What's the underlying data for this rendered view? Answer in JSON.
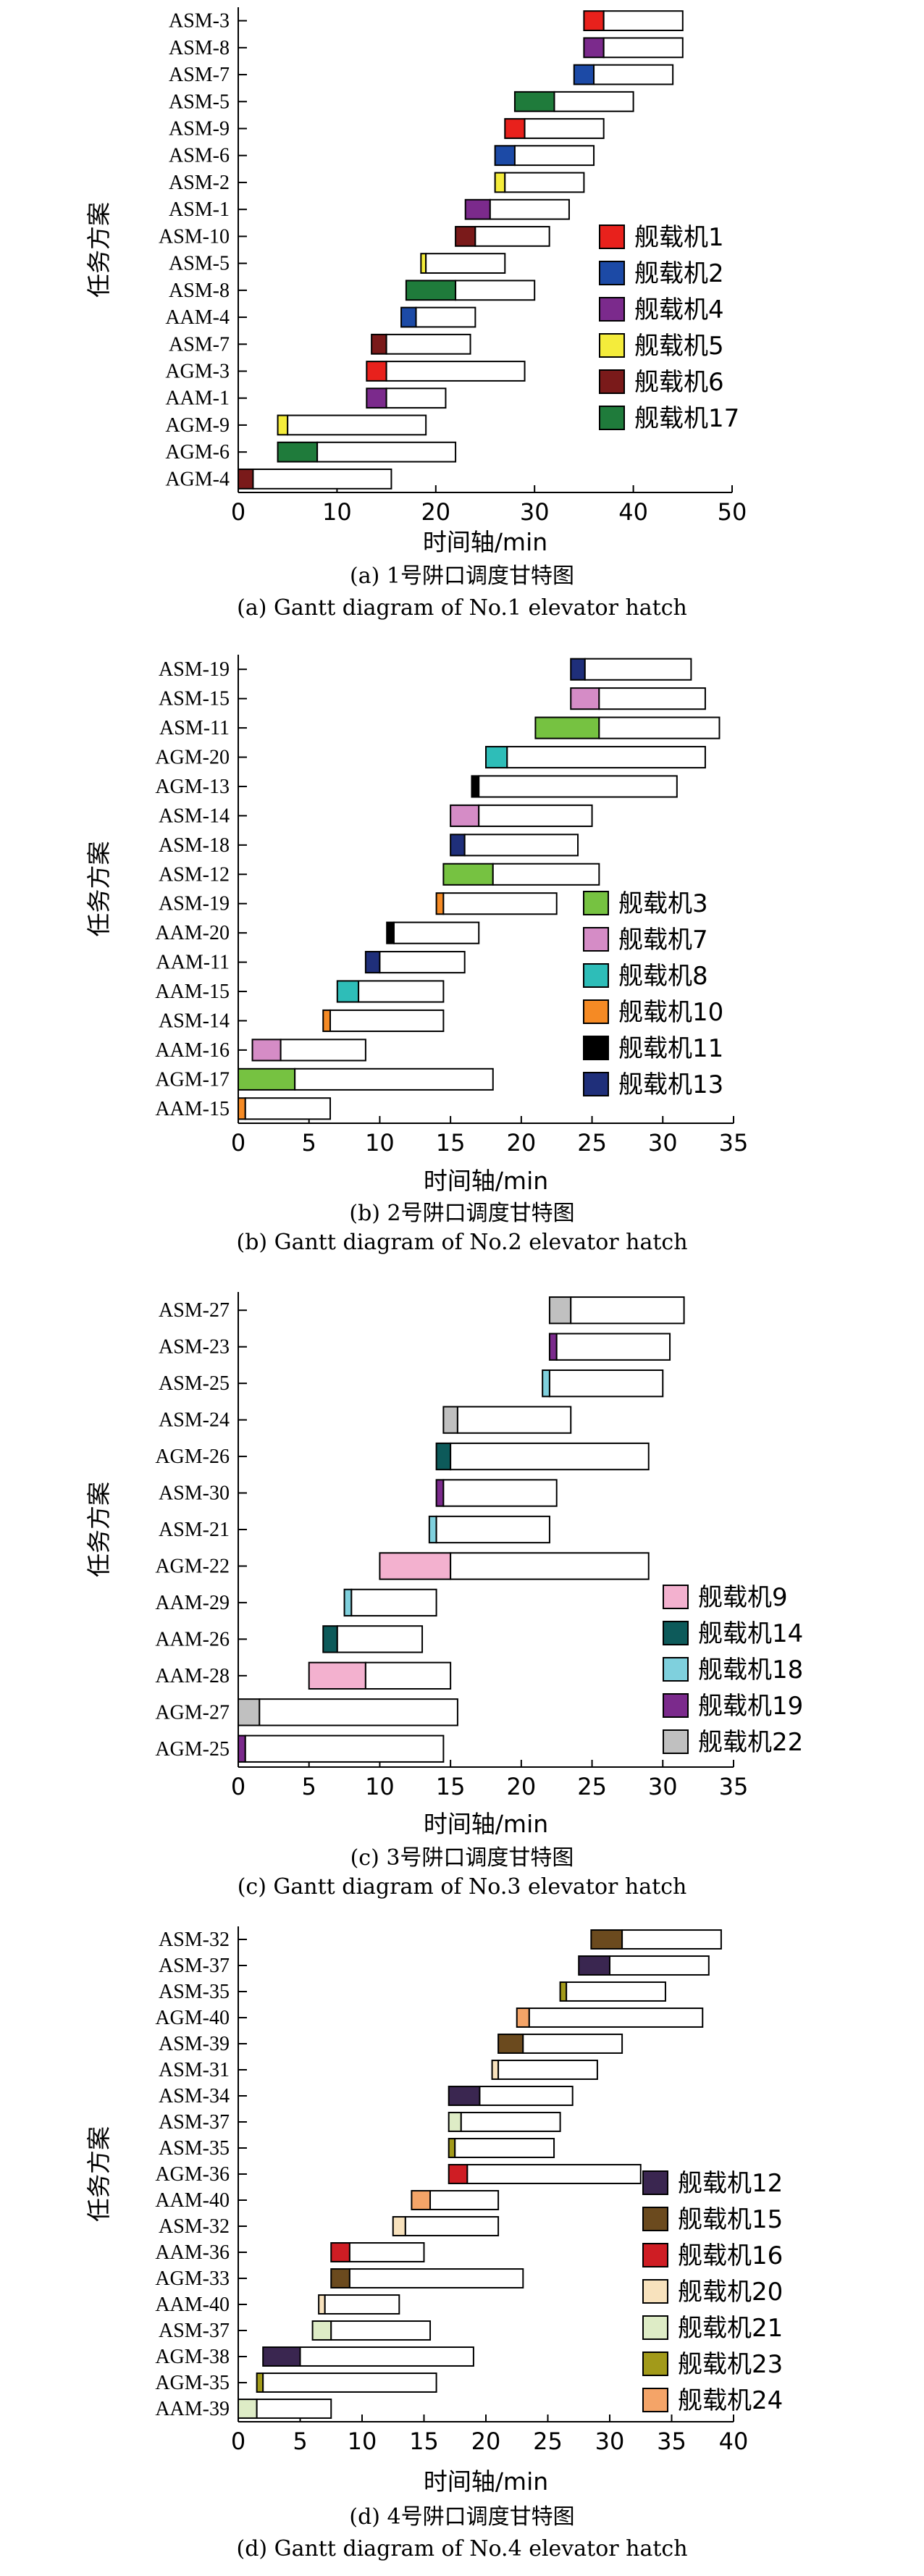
{
  "charts": [
    {
      "caption_cn": "(a) 1号阱口调度甘特图",
      "caption_en": "(a) Gantt diagram of No.1 elevator hatch",
      "chart_data": {
        "type": "gantt",
        "xlabel": "时间轴/min",
        "ylabel": "任务方案",
        "xlim": [
          0,
          50
        ],
        "xticks": [
          0,
          10,
          20,
          30,
          40,
          50
        ],
        "legend": [
          {
            "name": "舰载机1",
            "color": "#e8211c"
          },
          {
            "name": "舰载机2",
            "color": "#1c4aa6"
          },
          {
            "name": "舰载机4",
            "color": "#7b2a8c"
          },
          {
            "name": "舰载机5",
            "color": "#f4ec3b"
          },
          {
            "name": "舰载机6",
            "color": "#7a1a1a"
          },
          {
            "name": "舰载机17",
            "color": "#1f7b3b"
          }
        ],
        "rows": [
          {
            "label": "ASM-3",
            "color": "#e8211c",
            "start": 35,
            "mid": 37,
            "end": 45
          },
          {
            "label": "ASM-8",
            "color": "#7b2a8c",
            "start": 35,
            "mid": 37,
            "end": 45
          },
          {
            "label": "ASM-7",
            "color": "#1c4aa6",
            "start": 34,
            "mid": 36,
            "end": 44
          },
          {
            "label": "ASM-5",
            "color": "#1f7b3b",
            "start": 28,
            "mid": 32,
            "end": 40
          },
          {
            "label": "ASM-9",
            "color": "#e8211c",
            "start": 27,
            "mid": 29,
            "end": 37
          },
          {
            "label": "ASM-6",
            "color": "#1c4aa6",
            "start": 26,
            "mid": 28,
            "end": 36
          },
          {
            "label": "ASM-2",
            "color": "#f4ec3b",
            "start": 26,
            "mid": 27,
            "end": 35
          },
          {
            "label": "ASM-1",
            "color": "#7b2a8c",
            "start": 23,
            "mid": 25.5,
            "end": 33.5
          },
          {
            "label": "ASM-10",
            "color": "#7a1a1a",
            "start": 22,
            "mid": 24,
            "end": 31.5
          },
          {
            "label": "ASM-5",
            "color": "#f4ec3b",
            "start": 18.5,
            "mid": 19,
            "end": 27
          },
          {
            "label": "ASM-8",
            "color": "#1f7b3b",
            "start": 17,
            "mid": 22,
            "end": 30
          },
          {
            "label": "AAM-4",
            "color": "#1c4aa6",
            "start": 16.5,
            "mid": 18,
            "end": 24
          },
          {
            "label": "ASM-7",
            "color": "#7a1a1a",
            "start": 13.5,
            "mid": 15,
            "end": 23.5
          },
          {
            "label": "AGM-3",
            "color": "#e8211c",
            "start": 13,
            "mid": 15,
            "end": 29
          },
          {
            "label": "AAM-1",
            "color": "#7b2a8c",
            "start": 13,
            "mid": 15,
            "end": 21
          },
          {
            "label": "AGM-9",
            "color": "#f4ec3b",
            "start": 4,
            "mid": 5,
            "end": 19
          },
          {
            "label": "AGM-6",
            "color": "#1f7b3b",
            "start": 4,
            "mid": 8,
            "end": 22
          },
          {
            "label": "AGM-4",
            "color": "#7a1a1a",
            "start": 0,
            "mid": 1.5,
            "end": 15.5
          }
        ]
      }
    },
    {
      "caption_cn": "(b) 2号阱口调度甘特图",
      "caption_en": "(b) Gantt diagram of No.2 elevator hatch",
      "chart_data": {
        "type": "gantt",
        "xlabel": "时间轴/min",
        "ylabel": "任务方案",
        "xlim": [
          0,
          35
        ],
        "xticks": [
          0,
          5,
          10,
          15,
          20,
          25,
          30,
          35
        ],
        "legend": [
          {
            "name": "舰载机3",
            "color": "#76c241"
          },
          {
            "name": "舰载机7",
            "color": "#d58cc6"
          },
          {
            "name": "舰载机8",
            "color": "#2ebdb8"
          },
          {
            "name": "舰载机10",
            "color": "#f58a24"
          },
          {
            "name": "舰载机11",
            "color": "#000000"
          },
          {
            "name": "舰载机13",
            "color": "#1f2f7a"
          }
        ],
        "rows": [
          {
            "label": "ASM-19",
            "color": "#1f2f7a",
            "start": 23.5,
            "mid": 24.5,
            "end": 32
          },
          {
            "label": "ASM-15",
            "color": "#d58cc6",
            "start": 23.5,
            "mid": 25.5,
            "end": 33
          },
          {
            "label": "ASM-11",
            "color": "#76c241",
            "start": 21,
            "mid": 25.5,
            "end": 34
          },
          {
            "label": "AGM-20",
            "color": "#2ebdb8",
            "start": 17.5,
            "mid": 19,
            "end": 33
          },
          {
            "label": "AGM-13",
            "color": "#000000",
            "start": 16.5,
            "mid": 17,
            "end": 31
          },
          {
            "label": "ASM-14",
            "color": "#d58cc6",
            "start": 15,
            "mid": 17,
            "end": 25
          },
          {
            "label": "ASM-18",
            "color": "#1f2f7a",
            "start": 15,
            "mid": 16,
            "end": 24
          },
          {
            "label": "ASM-12",
            "color": "#76c241",
            "start": 14.5,
            "mid": 18,
            "end": 25.5
          },
          {
            "label": "ASM-19",
            "color": "#f58a24",
            "start": 14,
            "mid": 14.5,
            "end": 22.5
          },
          {
            "label": "AAM-20",
            "color": "#000000",
            "start": 10.5,
            "mid": 11,
            "end": 17
          },
          {
            "label": "AAM-11",
            "color": "#1f2f7a",
            "start": 9,
            "mid": 10,
            "end": 16
          },
          {
            "label": "AAM-15",
            "color": "#2ebdb8",
            "start": 7,
            "mid": 8.5,
            "end": 14.5
          },
          {
            "label": "ASM-14",
            "color": "#f58a24",
            "start": 6,
            "mid": 6.5,
            "end": 14.5
          },
          {
            "label": "AAM-16",
            "color": "#d58cc6",
            "start": 1,
            "mid": 3,
            "end": 9
          },
          {
            "label": "AGM-17",
            "color": "#76c241",
            "start": 0,
            "mid": 4,
            "end": 18
          },
          {
            "label": "AAM-15",
            "color": "#f58a24",
            "start": 0,
            "mid": 0.5,
            "end": 6.5
          }
        ]
      }
    },
    {
      "caption_cn": "(c) 3号阱口调度甘特图",
      "caption_en": "(c) Gantt diagram of No.3 elevator hatch",
      "chart_data": {
        "type": "gantt",
        "xlabel": "时间轴/min",
        "ylabel": "任务方案",
        "xlim": [
          0,
          35
        ],
        "xticks": [
          0,
          5,
          10,
          15,
          20,
          25,
          30,
          35
        ],
        "legend": [
          {
            "name": "舰载机9",
            "color": "#f3b1cf"
          },
          {
            "name": "舰载机14",
            "color": "#0d5a5a"
          },
          {
            "name": "舰载机18",
            "color": "#7fd0dd"
          },
          {
            "name": "舰载机19",
            "color": "#7b2a8c"
          },
          {
            "name": "舰载机22",
            "color": "#c0c0c0"
          }
        ],
        "rows": [
          {
            "label": "ASM-27",
            "color": "#c0c0c0",
            "start": 22,
            "mid": 23.5,
            "end": 31.5
          },
          {
            "label": "ASM-23",
            "color": "#7b2a8c",
            "start": 22,
            "mid": 22.5,
            "end": 30.5
          },
          {
            "label": "ASM-25",
            "color": "#7fd0dd",
            "start": 21.5,
            "mid": 22,
            "end": 30
          },
          {
            "label": "ASM-24",
            "color": "#c0c0c0",
            "start": 14.5,
            "mid": 15.5,
            "end": 23.5
          },
          {
            "label": "AGM-26",
            "color": "#0d5a5a",
            "start": 14,
            "mid": 15,
            "end": 29
          },
          {
            "label": "ASM-30",
            "color": "#7b2a8c",
            "start": 14,
            "mid": 14.5,
            "end": 22.5
          },
          {
            "label": "ASM-21",
            "color": "#7fd0dd",
            "start": 13.5,
            "mid": 14,
            "end": 22
          },
          {
            "label": "AGM-22",
            "color": "#f3b1cf",
            "start": 10,
            "mid": 15,
            "end": 29
          },
          {
            "label": "AAM-29",
            "color": "#7fd0dd",
            "start": 7.5,
            "mid": 8,
            "end": 14
          },
          {
            "label": "AAM-26",
            "color": "#0d5a5a",
            "start": 6,
            "mid": 7,
            "end": 13
          },
          {
            "label": "AAM-28",
            "color": "#f3b1cf",
            "start": 5,
            "mid": 9,
            "end": 15
          },
          {
            "label": "AGM-27",
            "color": "#c0c0c0",
            "start": 0,
            "mid": 1.5,
            "end": 15.5
          },
          {
            "label": "AGM-25",
            "color": "#7b2a8c",
            "start": 0,
            "mid": 0.5,
            "end": 14.5
          }
        ]
      }
    },
    {
      "caption_cn": "(d) 4号阱口调度甘特图",
      "caption_en": "(d) Gantt diagram of No.4 elevator hatch",
      "chart_data": {
        "type": "gantt",
        "xlabel": "时间轴/min",
        "ylabel": "任务方案",
        "xlim": [
          0,
          40
        ],
        "xticks": [
          0,
          5,
          10,
          15,
          20,
          25,
          30,
          35,
          40
        ],
        "legend": [
          {
            "name": "舰载机12",
            "color": "#3a2650"
          },
          {
            "name": "舰载机15",
            "color": "#6b4a1e"
          },
          {
            "name": "舰载机16",
            "color": "#cf1d24"
          },
          {
            "name": "舰载机20",
            "color": "#f8e2bd"
          },
          {
            "name": "舰载机21",
            "color": "#deecc6"
          },
          {
            "name": "舰载机23",
            "color": "#a29a1a"
          },
          {
            "name": "舰载机24",
            "color": "#f4a468"
          }
        ],
        "rows": [
          {
            "label": "ASM-32",
            "color": "#6b4a1e",
            "start": 28.5,
            "mid": 31,
            "end": 39
          },
          {
            "label": "ASM-37",
            "color": "#3a2650",
            "start": 27.5,
            "mid": 30,
            "end": 38
          },
          {
            "label": "ASM-35",
            "color": "#a29a1a",
            "start": 26,
            "mid": 26.5,
            "end": 34.5
          },
          {
            "label": "AGM-40",
            "color": "#f4a468",
            "start": 22.5,
            "mid": 23.5,
            "end": 37.5
          },
          {
            "label": "ASM-39",
            "color": "#6b4a1e",
            "start": 21,
            "mid": 23,
            "end": 31
          },
          {
            "label": "ASM-31",
            "color": "#f8e2bd",
            "start": 20.5,
            "mid": 21,
            "end": 29
          },
          {
            "label": "ASM-34",
            "color": "#3a2650",
            "start": 17,
            "mid": 19.5,
            "end": 27
          },
          {
            "label": "ASM-37",
            "color": "#deecc6",
            "start": 17,
            "mid": 18,
            "end": 26
          },
          {
            "label": "ASM-35",
            "color": "#a29a1a",
            "start": 17,
            "mid": 17.5,
            "end": 25.5
          },
          {
            "label": "AGM-36",
            "color": "#cf1d24",
            "start": 17,
            "mid": 18.5,
            "end": 32.5
          },
          {
            "label": "AAM-40",
            "color": "#f4a468",
            "start": 14,
            "mid": 15.5,
            "end": 21
          },
          {
            "label": "ASM-32",
            "color": "#f8e2bd",
            "start": 12.5,
            "mid": 13.5,
            "end": 21
          },
          {
            "label": "AAM-36",
            "color": "#cf1d24",
            "start": 7.5,
            "mid": 9,
            "end": 15
          },
          {
            "label": "AGM-33",
            "color": "#6b4a1e",
            "start": 7.5,
            "mid": 9,
            "end": 23
          },
          {
            "label": "AAM-40",
            "color": "#f8e2bd",
            "start": 6.5,
            "mid": 7,
            "end": 13
          },
          {
            "label": "ASM-37",
            "color": "#deecc6",
            "start": 6,
            "mid": 7.5,
            "end": 15.5
          },
          {
            "label": "AGM-38",
            "color": "#3a2650",
            "start": 2,
            "mid": 5,
            "end": 19
          },
          {
            "label": "AGM-35",
            "color": "#a29a1a",
            "start": 1.5,
            "mid": 2,
            "end": 16
          },
          {
            "label": "AAM-39",
            "color": "#deecc6",
            "start": 0,
            "mid": 1.5,
            "end": 7.5
          }
        ]
      }
    }
  ]
}
